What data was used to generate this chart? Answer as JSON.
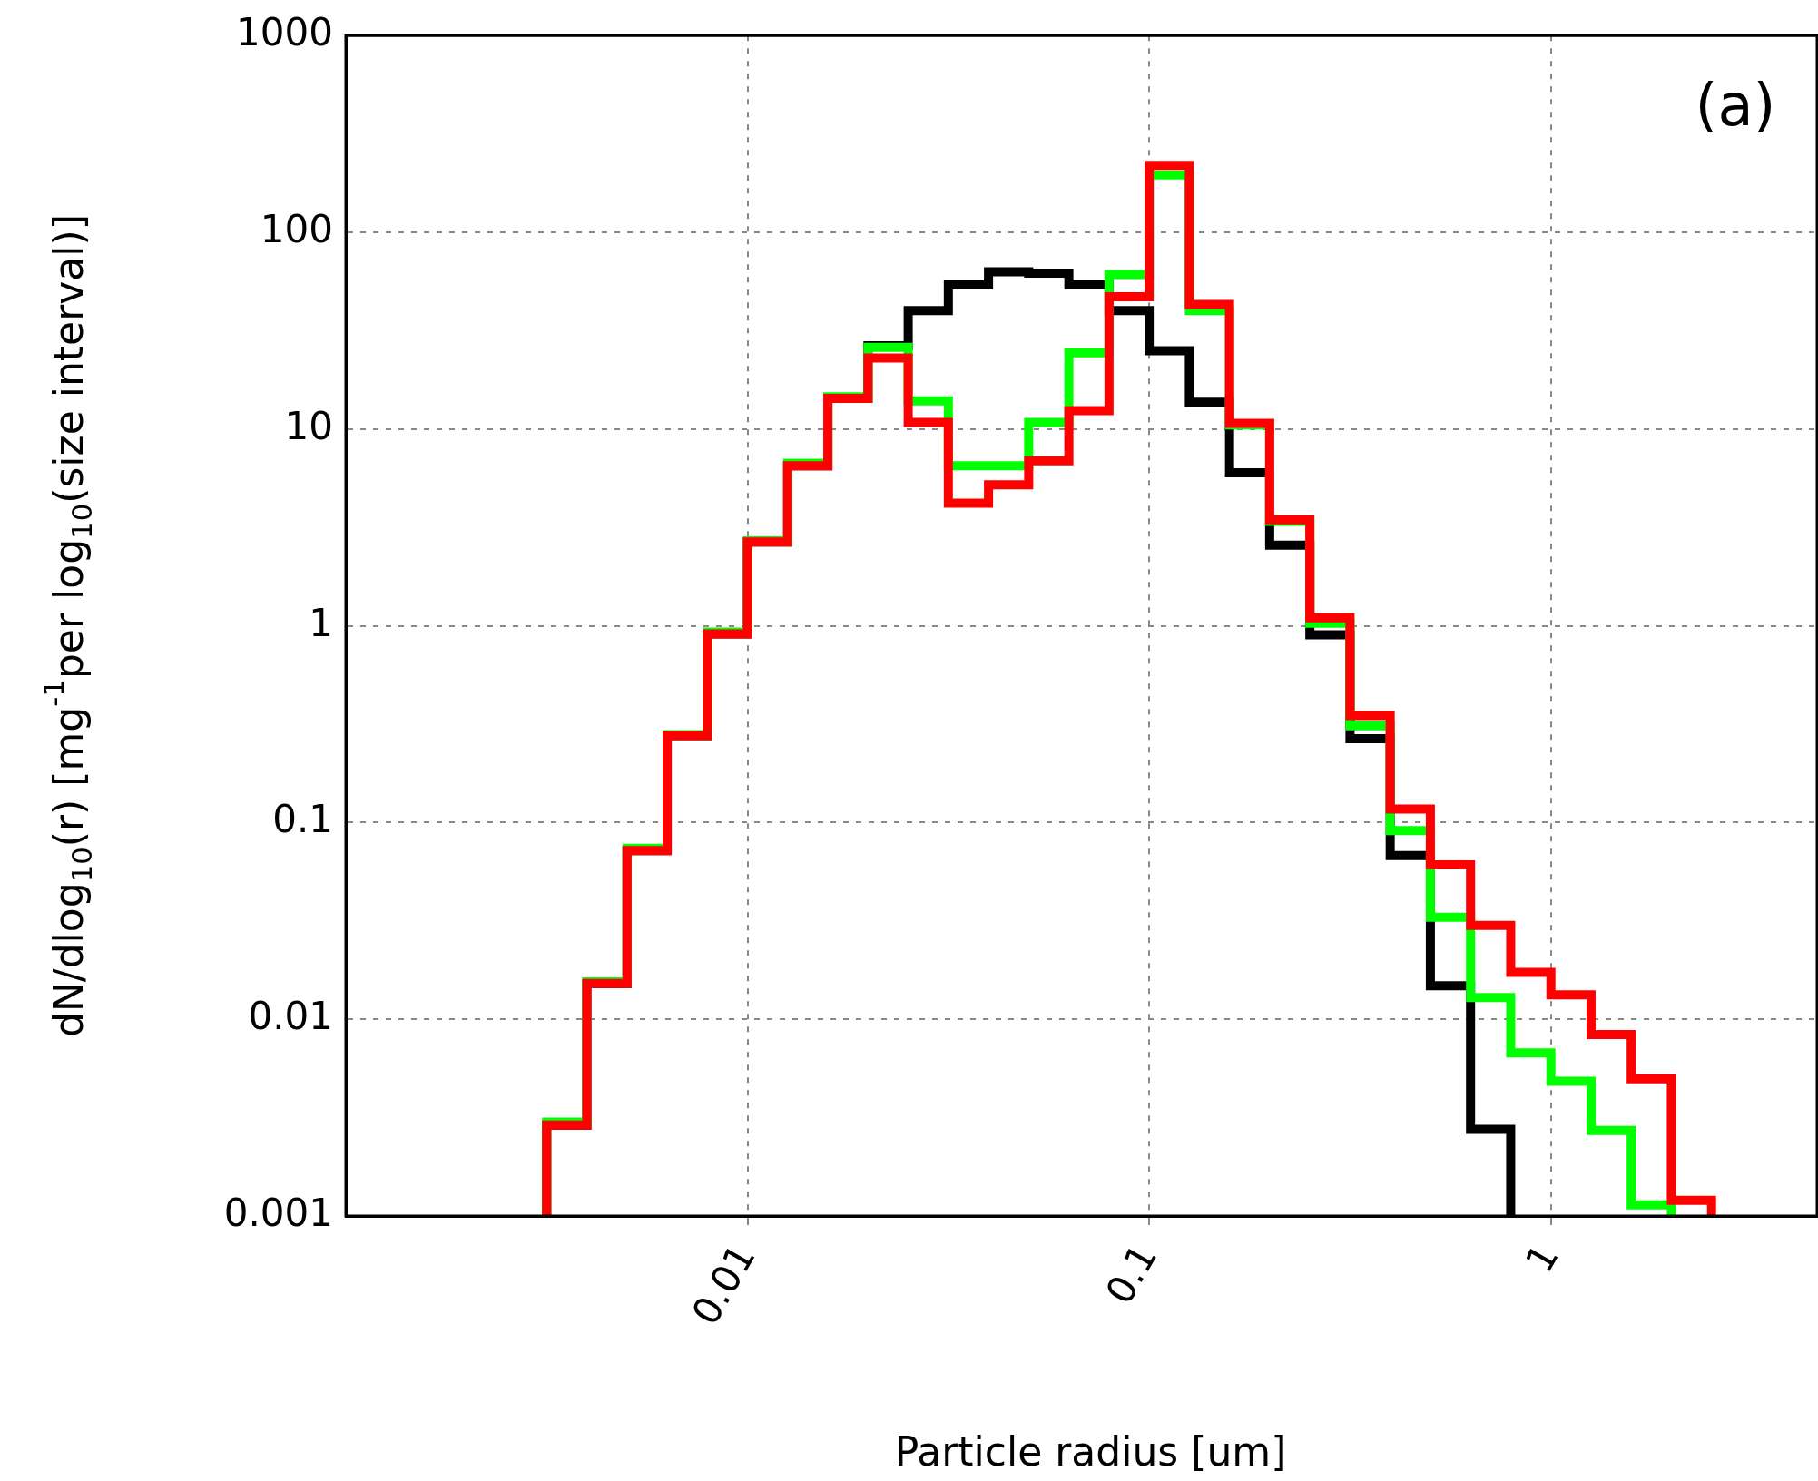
{
  "chart_data": {
    "type": "histogram",
    "xlabel": "Particle radius [um]",
    "ylabel": "dN/dlog$_{10}$(r) [mg$^{-1}$per log$_{10}$(size interval)]",
    "annotations": [
      "(a)"
    ],
    "bins": [
      0.003162,
      0.003981,
      0.005012,
      0.00631,
      0.007943,
      0.01,
      0.01259,
      0.01585,
      0.01995,
      0.02512,
      0.03162,
      0.03981,
      0.05012,
      0.0631,
      0.07943,
      0.1,
      0.1259,
      0.1585,
      0.1995,
      0.2512,
      0.3162,
      0.3981,
      0.5012,
      0.631,
      0.7943,
      1,
      1.259,
      1.585,
      1.995,
      2.512
    ],
    "series": [
      {
        "color": "#000000",
        "bins": [
          0.003162,
          0.003981,
          0.005012,
          0.00631,
          0.007943,
          0.01,
          0.01259,
          0.01585,
          0.01995,
          0.02512,
          0.03162,
          0.03981,
          0.05012,
          0.0631,
          0.07943,
          0.1,
          0.1259,
          0.1585,
          0.1995,
          0.2512,
          0.3162,
          0.3981,
          0.5012,
          0.631,
          0.7943
        ],
        "values": [
          0.0029,
          0.0152,
          0.072,
          0.277,
          0.91,
          2.67,
          6.5,
          14.3,
          26.5,
          40,
          54,
          63,
          62,
          54,
          40,
          25,
          13.7,
          6.0,
          2.57,
          0.9,
          0.267,
          0.068,
          0.0148,
          0.00276
        ]
      },
      {
        "color": "#00ff00",
        "bins": [
          0.003162,
          0.003981,
          0.005012,
          0.00631,
          0.007943,
          0.01,
          0.01259,
          0.01585,
          0.01995,
          0.02512,
          0.03162,
          0.03981,
          0.05012,
          0.0631,
          0.07943,
          0.1,
          0.1259,
          0.1585,
          0.1995,
          0.2512,
          0.3162,
          0.3981,
          0.5012,
          0.631,
          0.7943,
          1,
          1.259,
          1.585,
          1.995
        ],
        "values": [
          0.003,
          0.0155,
          0.074,
          0.28,
          0.93,
          2.7,
          6.7,
          14.6,
          26,
          13.9,
          6.5,
          6.5,
          10.8,
          24.4,
          61,
          196,
          40,
          10.5,
          3.4,
          1.03,
          0.31,
          0.091,
          0.033,
          0.0129,
          0.00675,
          0.00484,
          0.00272,
          0.00114
        ]
      },
      {
        "color": "#ff0000",
        "values": [
          0.0029,
          0.0152,
          0.072,
          0.277,
          0.91,
          2.67,
          6.5,
          14.3,
          23,
          10.8,
          4.2,
          5.2,
          6.9,
          12.4,
          47,
          219,
          43,
          10.7,
          3.46,
          1.1,
          0.35,
          0.117,
          0.061,
          0.03,
          0.0173,
          0.0133,
          0.00836,
          0.00499,
          0.0012
        ]
      }
    ],
    "xlim": [
      0.001,
      4.6
    ],
    "ylim": [
      0.001,
      1000
    ],
    "xticks": [
      0.01,
      0.1,
      1
    ],
    "yticks": [
      0.001,
      0.01,
      0.1,
      1,
      10,
      100,
      1000
    ],
    "log": "xy",
    "grid": true
  }
}
